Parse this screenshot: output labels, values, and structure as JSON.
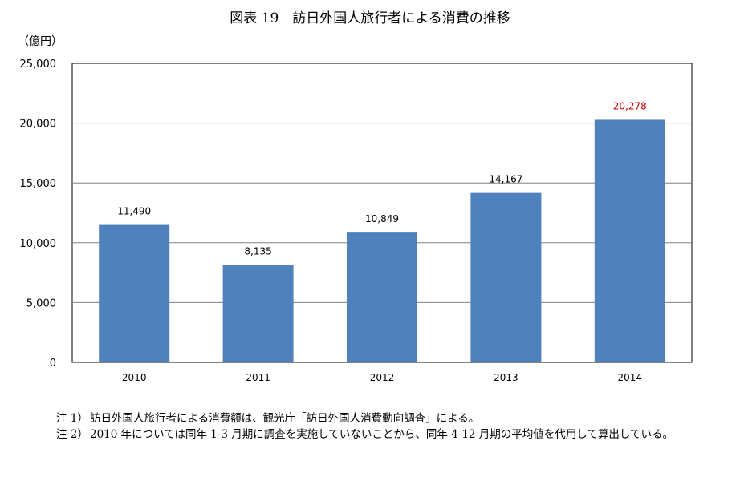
{
  "page": {
    "title": "図表 19　訪日外国人旅行者による消費の推移",
    "unit_label": "（億円）",
    "notes": [
      {
        "label": "注 1）",
        "text": "訪日外国人旅行者による消費額は、観光庁「訪日外国人消費動向調査」による。"
      },
      {
        "label": "注 2）",
        "text": "2010 年については同年 1-3 月期に調査を実施していないことから、同年 4-12 月期の平均値を代用して算出している。"
      }
    ]
  },
  "chart_data": {
    "type": "bar",
    "categories": [
      "2010",
      "2011",
      "2012",
      "2013",
      "2014"
    ],
    "values": [
      11490,
      8135,
      10849,
      14167,
      20278
    ],
    "data_labels": [
      "11,490",
      "8,135",
      "10,849",
      "14,167",
      "20,278"
    ],
    "ylim": [
      0,
      25000
    ],
    "yticks": [
      0,
      5000,
      10000,
      15000,
      20000,
      25000
    ],
    "ytick_labels": [
      "0",
      "5,000",
      "10,000",
      "15,000",
      "20,000",
      "25,000"
    ],
    "grid": true,
    "bar_color": "#4f81bd",
    "label_color": "#000000",
    "highlight_label_color": "#c00000",
    "highlight_index": 4
  }
}
